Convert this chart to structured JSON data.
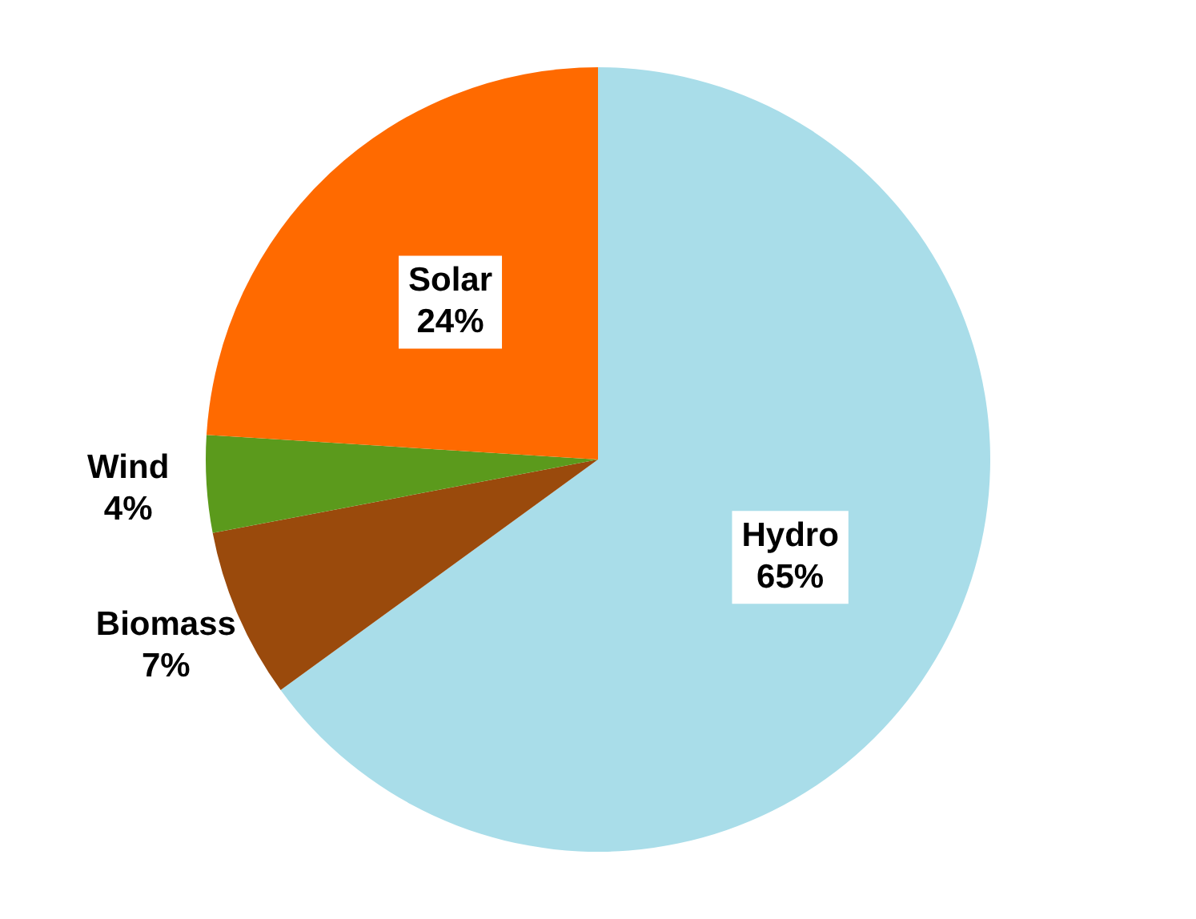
{
  "chart_data": {
    "type": "pie",
    "categories": [
      "Hydro",
      "Biomass",
      "Wind",
      "Solar"
    ],
    "values": [
      65,
      7,
      4,
      24
    ],
    "colors": [
      "#a9dde9",
      "#9a4a0c",
      "#5b9a1c",
      "#ff6a00"
    ],
    "value_labels": [
      "65%",
      "7%",
      "4%",
      "24%"
    ],
    "legend": false
  }
}
